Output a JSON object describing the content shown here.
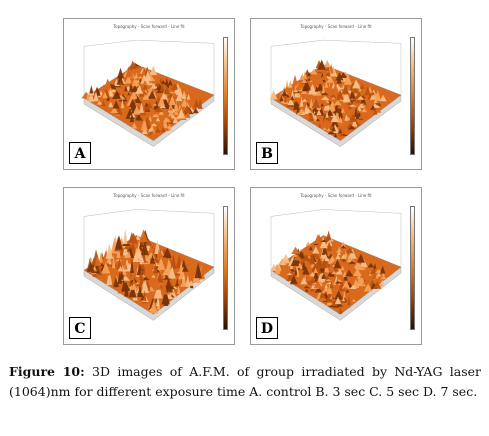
{
  "figure": {
    "panels": [
      {
        "letter": "A",
        "header": "Topography - Scan forward - Line fit"
      },
      {
        "letter": "B",
        "header": "Topography - Scan forward - Line fit"
      },
      {
        "letter": "C",
        "header": "Topography - Scan forward - Line fit"
      },
      {
        "letter": "D",
        "header": "Topography - Scan forward - Line fit"
      }
    ],
    "colors": {
      "surface_light": "#f4a25a",
      "surface_mid": "#d9691c",
      "surface_dark": "#7a3306",
      "border": "#9a9a9a"
    }
  },
  "caption": {
    "label": "Figure 10:",
    "text": " 3D images of A.F.M. of group irradiated by Nd-YAG laser (1064)nm for different exposure time  A. control   B. 3 sec C. 5 sec D. 7 sec."
  }
}
